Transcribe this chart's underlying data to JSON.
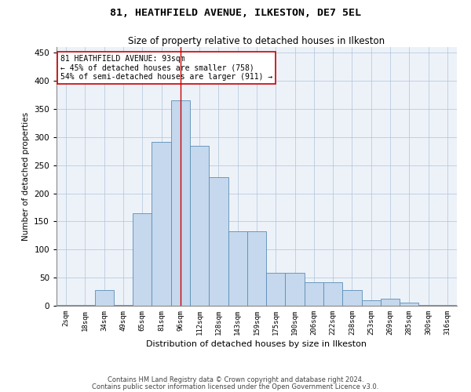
{
  "title1": "81, HEATHFIELD AVENUE, ILKESTON, DE7 5EL",
  "title2": "Size of property relative to detached houses in Ilkeston",
  "xlabel": "Distribution of detached houses by size in Ilkeston",
  "ylabel": "Number of detached properties",
  "categories": [
    "2sqm",
    "18sqm",
    "34sqm",
    "49sqm",
    "65sqm",
    "81sqm",
    "96sqm",
    "112sqm",
    "128sqm",
    "143sqm",
    "159sqm",
    "175sqm",
    "190sqm",
    "206sqm",
    "222sqm",
    "238sqm",
    "253sqm",
    "269sqm",
    "285sqm",
    "300sqm",
    "316sqm"
  ],
  "values": [
    2,
    2,
    28,
    2,
    165,
    292,
    365,
    285,
    228,
    133,
    133,
    58,
    58,
    42,
    42,
    28,
    10,
    13,
    5,
    2,
    2
  ],
  "bar_color": "#c5d8ed",
  "bar_edge_color": "#5a8db5",
  "vline_x": 6,
  "vline_color": "#cc0000",
  "annotation_text": "81 HEATHFIELD AVENUE: 93sqm\n← 45% of detached houses are smaller (758)\n54% of semi-detached houses are larger (911) →",
  "annotation_box_color": "#ffffff",
  "annotation_box_edge": "#cc0000",
  "background_color": "#edf2f9",
  "ylim": [
    0,
    460
  ],
  "yticks": [
    0,
    50,
    100,
    150,
    200,
    250,
    300,
    350,
    400,
    450
  ],
  "footer1": "Contains HM Land Registry data © Crown copyright and database right 2024.",
  "footer2": "Contains public sector information licensed under the Open Government Licence v3.0."
}
